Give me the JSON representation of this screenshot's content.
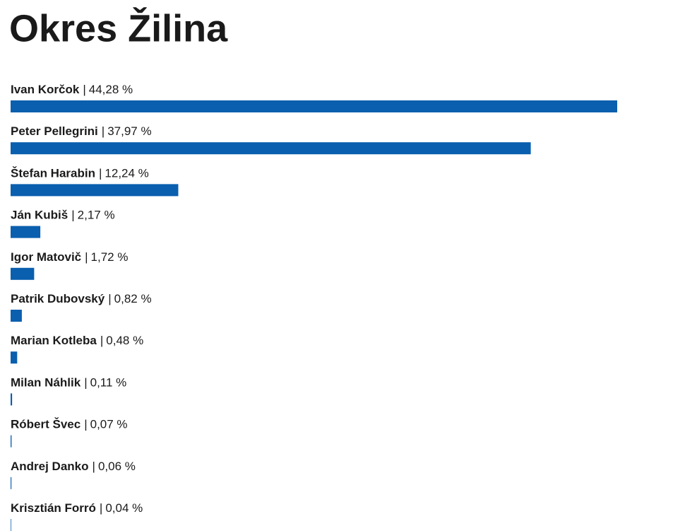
{
  "chart_data": {
    "type": "bar",
    "orientation": "horizontal",
    "title": "Okres Žilina",
    "label_separator": "|",
    "categories": [
      "Ivan Korčok",
      "Peter Pellegrini",
      "Štefan Harabin",
      "Ján Kubiš",
      "Igor Matovič",
      "Patrik Dubovský",
      "Marian Kotleba",
      "Milan Náhlik",
      "Róbert Švec",
      "Andrej Danko",
      "Krisztián Forró"
    ],
    "values": [
      44.28,
      37.97,
      12.24,
      2.17,
      1.72,
      0.82,
      0.48,
      0.11,
      0.07,
      0.06,
      0.04
    ],
    "value_labels": [
      "44,28 %",
      "37,97 %",
      "12,24 %",
      "2,17 %",
      "1,72 %",
      "0,82 %",
      "0,48 %",
      "0,11 %",
      "0,07 %",
      "0,06 %",
      "0,04 %"
    ],
    "color": "#0a5fae"
  }
}
